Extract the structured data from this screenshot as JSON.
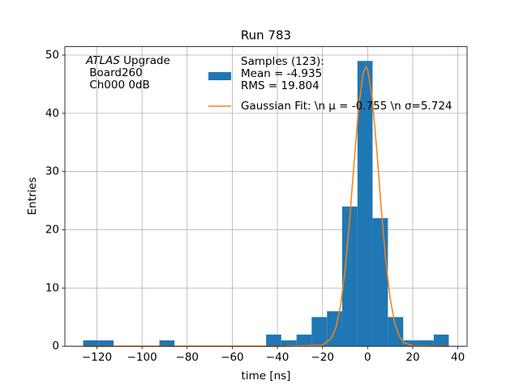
{
  "chart_data": {
    "type": "histogram",
    "title": "Run 783",
    "x_label": "time [ns]",
    "y_label": "Entries",
    "bins": [
      -126.1,
      -119.35,
      -112.6,
      -105.8,
      -99.1,
      -92.3,
      -85.6,
      -78.8,
      -72.0,
      -65.3,
      -58.5,
      -51.8,
      -45.0,
      -38.3,
      -31.5,
      -24.8,
      -18.0,
      -11.3,
      -4.5,
      2.2,
      9.0,
      15.8,
      22.5,
      29.3,
      36.0
    ],
    "series": [
      {
        "name": [
          "Samples (123):",
          " Mean = -4.935",
          " RMS = 19.804"
        ],
        "color": "#1f77b4",
        "values": [
          1,
          1,
          0,
          0,
          0,
          1,
          0,
          0,
          0,
          0,
          0,
          0,
          2,
          1,
          2,
          5,
          6,
          24,
          49,
          22,
          5,
          1,
          1,
          2
        ]
      },
      {
        "name": "Gaussian Fit: \\n μ = -0.755 \\n σ=5.724",
        "color": "#ff7f0e",
        "type": "line",
        "x": [
          -126,
          -40,
          -20,
          -16,
          -14,
          -12,
          -10,
          -8,
          -6,
          -4,
          -2,
          -0.755,
          0,
          2,
          4,
          6,
          8,
          10,
          12,
          14,
          16,
          20,
          36
        ],
        "values": [
          0,
          0,
          0.17,
          1.38,
          3.3,
          6.96,
          13.0,
          21.5,
          31.5,
          40.9,
          46.9,
          48,
          47.6,
          42.8,
          34.0,
          23.9,
          14.9,
          8.2,
          4.0,
          1.73,
          0.66,
          0.07,
          0
        ]
      }
    ],
    "annotation": {
      "emph": "ATLAS",
      "rest": " Upgrade",
      "lines": [
        " Board260",
        " Ch000 0dB"
      ]
    },
    "xlim": [
      -134.2,
      44.1
    ],
    "ylim": [
      0,
      51.45
    ],
    "xticks": [
      {
        "value": -120,
        "label": "−120"
      },
      {
        "value": -100,
        "label": "−100"
      },
      {
        "value": -80,
        "label": "−80"
      },
      {
        "value": -60,
        "label": "−60"
      },
      {
        "value": -40,
        "label": "−40"
      },
      {
        "value": -20,
        "label": "−20"
      },
      0,
      20,
      40
    ],
    "yticks": [
      0,
      10,
      20,
      30,
      40,
      50
    ],
    "grid": true
  }
}
